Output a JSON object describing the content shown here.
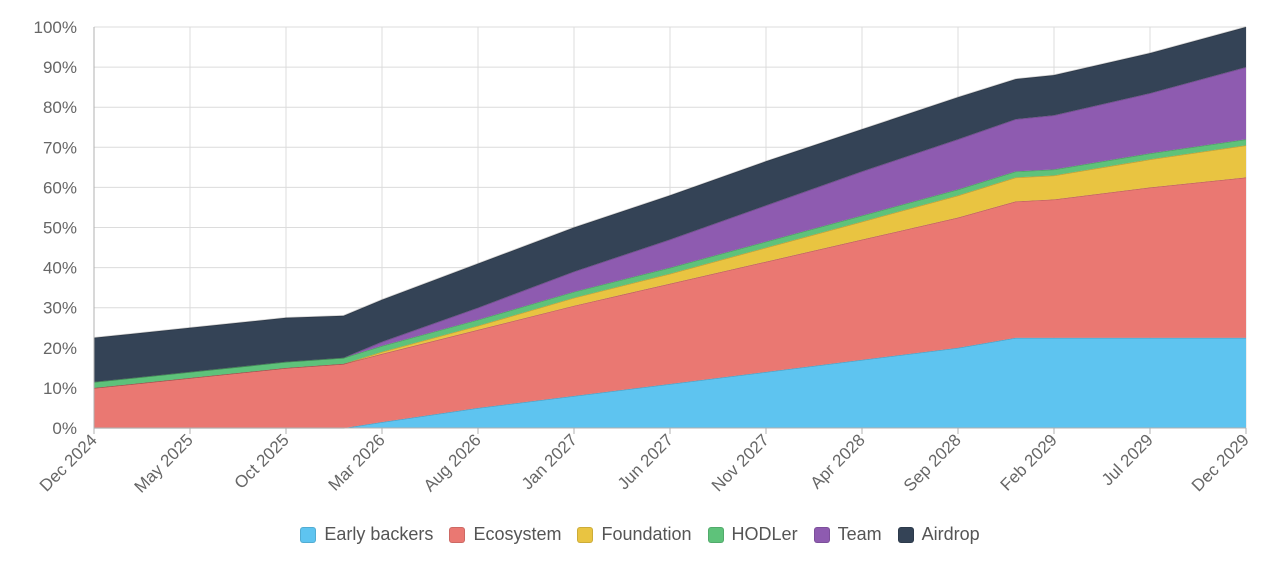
{
  "chart_data": {
    "type": "area",
    "stacked": true,
    "x": [
      "Dec 2024",
      "May 2025",
      "Oct 2025",
      "Jan 2026",
      "Mar 2026",
      "Aug 2026",
      "Jan 2027",
      "Jun 2027",
      "Nov 2027",
      "Apr 2028",
      "Sep 2028",
      "Dec 2028",
      "Feb 2029",
      "Jul 2029",
      "Dec 2029"
    ],
    "x_ticks": [
      "Dec 2024",
      "May 2025",
      "Oct 2025",
      "Mar 2026",
      "Aug 2026",
      "Jan 2027",
      "Jun 2027",
      "Nov 2027",
      "Apr 2028",
      "Sep 2028",
      "Feb 2029",
      "Jul 2029",
      "Dec 2029"
    ],
    "y_ticks": [
      "0%",
      "10%",
      "20%",
      "30%",
      "40%",
      "50%",
      "60%",
      "70%",
      "80%",
      "90%",
      "100%"
    ],
    "ylim": [
      0,
      100
    ],
    "grid": true,
    "legend_position": "bottom",
    "series": [
      {
        "name": "Early backers",
        "color": "#5ec4f0",
        "values": [
          0,
          0,
          0,
          0,
          1.5,
          5,
          8,
          11,
          14,
          17,
          20,
          22.5,
          22.5,
          22.5,
          22.5
        ]
      },
      {
        "name": "Ecosystem",
        "color": "#ea7872",
        "values": [
          10,
          12.5,
          15,
          16,
          17,
          19.5,
          22.5,
          25,
          27.5,
          30,
          32.5,
          34,
          34.5,
          37.5,
          40
        ]
      },
      {
        "name": "Foundation",
        "color": "#e9c441",
        "values": [
          0,
          0,
          0,
          0,
          0.5,
          1,
          2,
          2.5,
          3.5,
          4.5,
          5.5,
          6,
          6,
          7,
          8
        ]
      },
      {
        "name": "HODLer",
        "color": "#5ec27a",
        "values": [
          1.5,
          1.5,
          1.5,
          1.5,
          1.5,
          1.5,
          1.5,
          1.5,
          1.5,
          1.5,
          1.5,
          1.5,
          1.5,
          1.5,
          1.5
        ]
      },
      {
        "name": "Team",
        "color": "#8e5bb0",
        "values": [
          0,
          0,
          0,
          0,
          1,
          3,
          5,
          7,
          9,
          11,
          12.5,
          13,
          13.5,
          15,
          18
        ]
      },
      {
        "name": "Airdrop",
        "color": "#344356",
        "values": [
          11,
          11,
          11,
          10.5,
          10.5,
          11,
          11,
          11,
          11,
          10.5,
          10.5,
          10,
          10,
          10,
          10
        ]
      }
    ]
  }
}
